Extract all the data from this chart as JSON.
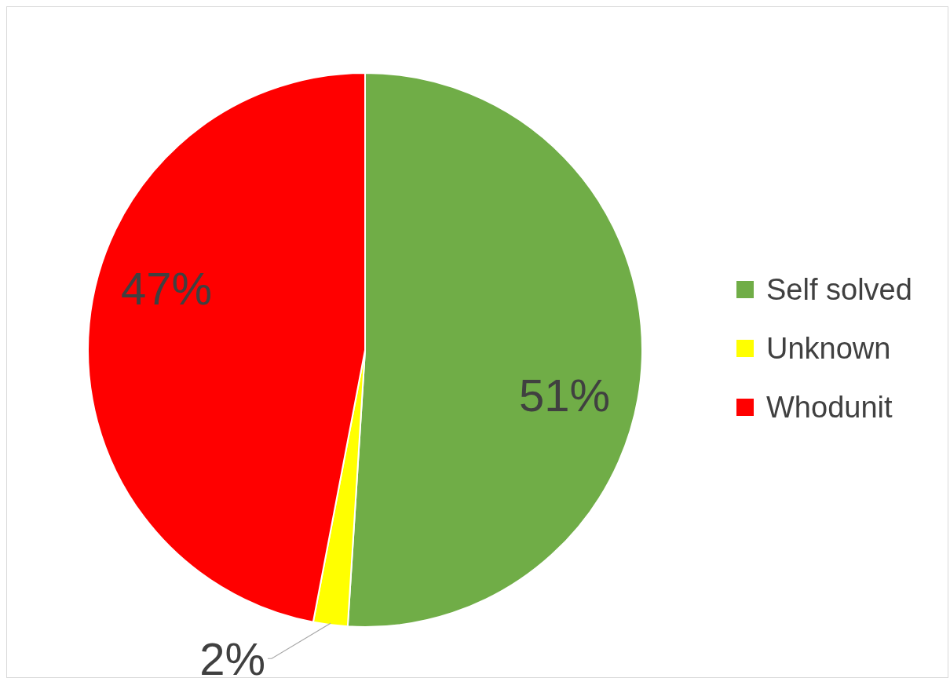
{
  "chart_data": {
    "type": "pie",
    "categories": [
      "Self solved",
      "Unknown",
      "Whodunit"
    ],
    "values": [
      51,
      2,
      47
    ],
    "colors": [
      "#70ad47",
      "#ffff00",
      "#ff0000"
    ],
    "value_labels": [
      "51%",
      "2%",
      "47%"
    ],
    "legend": "right"
  }
}
